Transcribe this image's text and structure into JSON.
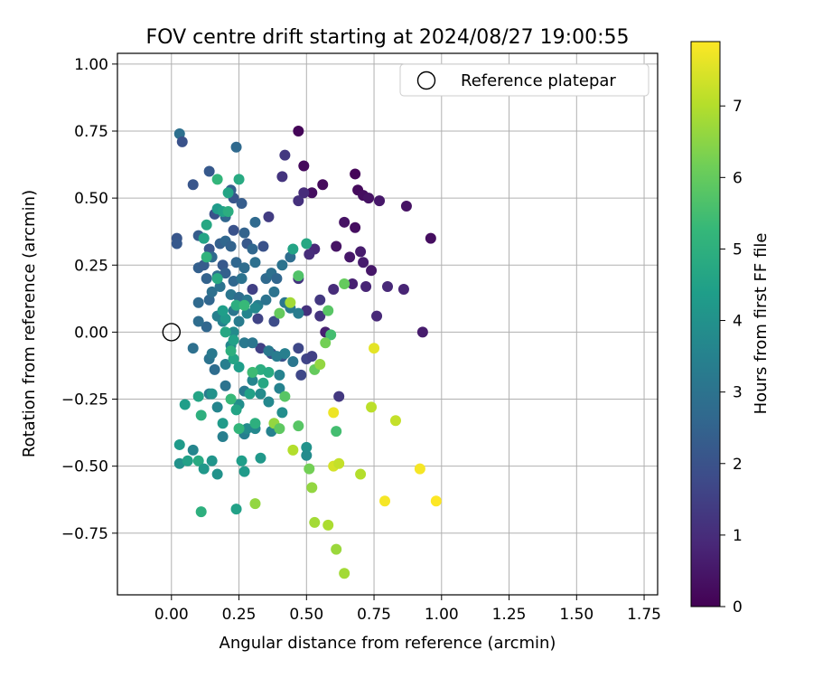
{
  "chart_data": {
    "type": "scatter",
    "title": "FOV centre drift starting at 2024/08/27 19:00:55",
    "xlabel": "Angular distance from reference (arcmin)",
    "ylabel": "Rotation from reference (arcmin)",
    "xlim": [
      -0.2,
      1.8
    ],
    "ylim": [
      -0.98,
      1.04
    ],
    "xticks": [
      "0.00",
      "0.25",
      "0.50",
      "0.75",
      "1.00",
      "1.25",
      "1.50",
      "1.75"
    ],
    "yticks": [
      "−0.75",
      "−0.50",
      "−0.25",
      "0.00",
      "0.25",
      "0.50",
      "0.75",
      "1.00"
    ],
    "xtick_values": [
      0,
      0.25,
      0.5,
      0.75,
      1.0,
      1.25,
      1.5,
      1.75
    ],
    "ytick_values": [
      -0.75,
      -0.5,
      -0.25,
      0,
      0.25,
      0.5,
      0.75,
      1.0
    ],
    "grid": true,
    "legend": {
      "placement": "top-right",
      "label": "Reference platepar"
    },
    "reference_point": {
      "x": 0.0,
      "y": 0.0
    },
    "colorbar": {
      "label": "Hours from first FF file",
      "min": 0,
      "max": 7.9,
      "ticks": [
        "0",
        "1",
        "2",
        "3",
        "4",
        "5",
        "6",
        "7"
      ],
      "tick_values": [
        0,
        1,
        2,
        3,
        4,
        5,
        6,
        7
      ],
      "colormap": "viridis",
      "colors": [
        "#440154",
        "#482878",
        "#3e4a89",
        "#31688e",
        "#26828e",
        "#1f9e89",
        "#35b779",
        "#6ece58",
        "#b5de2b",
        "#fde725"
      ]
    },
    "points": [
      {
        "x": 0.47,
        "y": 0.75,
        "c": 0.1
      },
      {
        "x": 0.49,
        "y": 0.62,
        "c": 0.2
      },
      {
        "x": 0.52,
        "y": 0.52,
        "c": 0.3
      },
      {
        "x": 0.56,
        "y": 0.55,
        "c": 0.2
      },
      {
        "x": 0.68,
        "y": 0.59,
        "c": 0.1
      },
      {
        "x": 0.69,
        "y": 0.53,
        "c": 0.2
      },
      {
        "x": 0.71,
        "y": 0.51,
        "c": 0.3
      },
      {
        "x": 0.73,
        "y": 0.5,
        "c": 0.4
      },
      {
        "x": 0.77,
        "y": 0.49,
        "c": 0.5
      },
      {
        "x": 0.87,
        "y": 0.47,
        "c": 0.4
      },
      {
        "x": 0.96,
        "y": 0.35,
        "c": 0.3
      },
      {
        "x": 0.64,
        "y": 0.41,
        "c": 0.4
      },
      {
        "x": 0.68,
        "y": 0.39,
        "c": 0.3
      },
      {
        "x": 0.61,
        "y": 0.32,
        "c": 0.4
      },
      {
        "x": 0.7,
        "y": 0.3,
        "c": 0.6
      },
      {
        "x": 0.66,
        "y": 0.28,
        "c": 0.5
      },
      {
        "x": 0.71,
        "y": 0.26,
        "c": 0.6
      },
      {
        "x": 0.74,
        "y": 0.23,
        "c": 0.5
      },
      {
        "x": 0.67,
        "y": 0.18,
        "c": 0.7
      },
      {
        "x": 0.72,
        "y": 0.17,
        "c": 0.8
      },
      {
        "x": 0.8,
        "y": 0.17,
        "c": 0.9
      },
      {
        "x": 0.86,
        "y": 0.16,
        "c": 0.8
      },
      {
        "x": 0.76,
        "y": 0.06,
        "c": 0.9
      },
      {
        "x": 0.93,
        "y": 0.0,
        "c": 0.6
      },
      {
        "x": 0.57,
        "y": 0.0,
        "c": 0.7
      },
      {
        "x": 0.53,
        "y": 0.31,
        "c": 0.9
      },
      {
        "x": 0.51,
        "y": 0.29,
        "c": 1.0
      },
      {
        "x": 0.6,
        "y": 0.16,
        "c": 1.0
      },
      {
        "x": 0.5,
        "y": 0.08,
        "c": 1.1
      },
      {
        "x": 0.55,
        "y": 0.06,
        "c": 1.2
      },
      {
        "x": 0.42,
        "y": 0.66,
        "c": 1.3
      },
      {
        "x": 0.41,
        "y": 0.58,
        "c": 1.2
      },
      {
        "x": 0.49,
        "y": 0.52,
        "c": 1.0
      },
      {
        "x": 0.47,
        "y": 0.49,
        "c": 1.1
      },
      {
        "x": 0.36,
        "y": 0.43,
        "c": 1.4
      },
      {
        "x": 0.3,
        "y": 0.16,
        "c": 1.5
      },
      {
        "x": 0.32,
        "y": 0.05,
        "c": 1.6
      },
      {
        "x": 0.38,
        "y": 0.04,
        "c": 1.8
      },
      {
        "x": 0.33,
        "y": -0.06,
        "c": 1.5
      },
      {
        "x": 0.37,
        "y": -0.08,
        "c": 1.9
      },
      {
        "x": 0.41,
        "y": -0.09,
        "c": 2.0
      },
      {
        "x": 0.47,
        "y": -0.06,
        "c": 1.7
      },
      {
        "x": 0.5,
        "y": -0.1,
        "c": 1.6
      },
      {
        "x": 0.52,
        "y": -0.09,
        "c": 1.5
      },
      {
        "x": 0.48,
        "y": -0.16,
        "c": 1.7
      },
      {
        "x": 0.62,
        "y": -0.24,
        "c": 1.3
      },
      {
        "x": 0.47,
        "y": 0.2,
        "c": 1.2
      },
      {
        "x": 0.55,
        "y": 0.12,
        "c": 1.3
      },
      {
        "x": 0.02,
        "y": 0.35,
        "c": 2.1
      },
      {
        "x": 0.02,
        "y": 0.33,
        "c": 2.2
      },
      {
        "x": 0.03,
        "y": 0.74,
        "c": 2.9
      },
      {
        "x": 0.04,
        "y": 0.71,
        "c": 2.0
      },
      {
        "x": 0.08,
        "y": 0.55,
        "c": 2.1
      },
      {
        "x": 0.14,
        "y": 0.6,
        "c": 2.2
      },
      {
        "x": 0.24,
        "y": 0.69,
        "c": 2.7
      },
      {
        "x": 0.22,
        "y": 0.53,
        "c": 2.4
      },
      {
        "x": 0.23,
        "y": 0.5,
        "c": 2.1
      },
      {
        "x": 0.26,
        "y": 0.48,
        "c": 2.3
      },
      {
        "x": 0.2,
        "y": 0.43,
        "c": 2.6
      },
      {
        "x": 0.16,
        "y": 0.44,
        "c": 2.0
      },
      {
        "x": 0.23,
        "y": 0.38,
        "c": 2.0
      },
      {
        "x": 0.31,
        "y": 0.41,
        "c": 2.7
      },
      {
        "x": 0.27,
        "y": 0.37,
        "c": 2.5
      },
      {
        "x": 0.1,
        "y": 0.36,
        "c": 2.3
      },
      {
        "x": 0.12,
        "y": 0.35,
        "c": 2.5
      },
      {
        "x": 0.14,
        "y": 0.31,
        "c": 2.1
      },
      {
        "x": 0.18,
        "y": 0.33,
        "c": 2.4
      },
      {
        "x": 0.2,
        "y": 0.34,
        "c": 2.6
      },
      {
        "x": 0.22,
        "y": 0.32,
        "c": 2.5
      },
      {
        "x": 0.28,
        "y": 0.33,
        "c": 2.2
      },
      {
        "x": 0.3,
        "y": 0.31,
        "c": 2.6
      },
      {
        "x": 0.34,
        "y": 0.32,
        "c": 2.0
      },
      {
        "x": 0.15,
        "y": 0.28,
        "c": 2.7
      },
      {
        "x": 0.19,
        "y": 0.25,
        "c": 2.2
      },
      {
        "x": 0.24,
        "y": 0.26,
        "c": 2.6
      },
      {
        "x": 0.1,
        "y": 0.24,
        "c": 2.4
      },
      {
        "x": 0.12,
        "y": 0.25,
        "c": 2.3
      },
      {
        "x": 0.27,
        "y": 0.24,
        "c": 2.8
      },
      {
        "x": 0.31,
        "y": 0.26,
        "c": 2.9
      },
      {
        "x": 0.13,
        "y": 0.2,
        "c": 2.5
      },
      {
        "x": 0.17,
        "y": 0.21,
        "c": 2.9
      },
      {
        "x": 0.2,
        "y": 0.22,
        "c": 2.4
      },
      {
        "x": 0.23,
        "y": 0.19,
        "c": 2.6
      },
      {
        "x": 0.26,
        "y": 0.2,
        "c": 3.0
      },
      {
        "x": 0.35,
        "y": 0.2,
        "c": 2.7
      },
      {
        "x": 0.37,
        "y": 0.22,
        "c": 2.9
      },
      {
        "x": 0.39,
        "y": 0.2,
        "c": 2.6
      },
      {
        "x": 0.41,
        "y": 0.25,
        "c": 3.0
      },
      {
        "x": 0.44,
        "y": 0.28,
        "c": 2.8
      },
      {
        "x": 0.38,
        "y": 0.15,
        "c": 3.0
      },
      {
        "x": 0.42,
        "y": 0.11,
        "c": 3.1
      },
      {
        "x": 0.44,
        "y": 0.09,
        "c": 3.2
      },
      {
        "x": 0.47,
        "y": 0.07,
        "c": 3.3
      },
      {
        "x": 0.1,
        "y": 0.11,
        "c": 2.7
      },
      {
        "x": 0.14,
        "y": 0.12,
        "c": 2.6
      },
      {
        "x": 0.15,
        "y": 0.15,
        "c": 2.9
      },
      {
        "x": 0.18,
        "y": 0.17,
        "c": 3.0
      },
      {
        "x": 0.22,
        "y": 0.14,
        "c": 3.1
      },
      {
        "x": 0.25,
        "y": 0.13,
        "c": 2.8
      },
      {
        "x": 0.28,
        "y": 0.12,
        "c": 3.2
      },
      {
        "x": 0.32,
        "y": 0.1,
        "c": 3.3
      },
      {
        "x": 0.35,
        "y": 0.12,
        "c": 3.0
      },
      {
        "x": 0.13,
        "y": 0.02,
        "c": 2.6
      },
      {
        "x": 0.1,
        "y": 0.04,
        "c": 2.8
      },
      {
        "x": 0.17,
        "y": 0.06,
        "c": 3.4
      },
      {
        "x": 0.19,
        "y": 0.04,
        "c": 3.5
      },
      {
        "x": 0.23,
        "y": 0.08,
        "c": 3.1
      },
      {
        "x": 0.25,
        "y": 0.04,
        "c": 3.3
      },
      {
        "x": 0.28,
        "y": 0.07,
        "c": 3.6
      },
      {
        "x": 0.31,
        "y": 0.09,
        "c": 3.7
      },
      {
        "x": 0.08,
        "y": -0.06,
        "c": 2.9
      },
      {
        "x": 0.14,
        "y": -0.1,
        "c": 3.0
      },
      {
        "x": 0.15,
        "y": -0.08,
        "c": 3.2
      },
      {
        "x": 0.16,
        "y": -0.14,
        "c": 2.8
      },
      {
        "x": 0.2,
        "y": -0.12,
        "c": 3.4
      },
      {
        "x": 0.22,
        "y": -0.05,
        "c": 3.7
      },
      {
        "x": 0.23,
        "y": 0.0,
        "c": 3.8
      },
      {
        "x": 0.27,
        "y": -0.04,
        "c": 3.2
      },
      {
        "x": 0.3,
        "y": -0.04,
        "c": 3.1
      },
      {
        "x": 0.36,
        "y": -0.07,
        "c": 3.2
      },
      {
        "x": 0.39,
        "y": -0.09,
        "c": 3.3
      },
      {
        "x": 0.42,
        "y": -0.08,
        "c": 3.4
      },
      {
        "x": 0.45,
        "y": -0.11,
        "c": 3.1
      },
      {
        "x": 0.4,
        "y": -0.16,
        "c": 3.5
      },
      {
        "x": 0.3,
        "y": -0.18,
        "c": 3.6
      },
      {
        "x": 0.27,
        "y": -0.22,
        "c": 3.2
      },
      {
        "x": 0.33,
        "y": -0.23,
        "c": 3.8
      },
      {
        "x": 0.36,
        "y": -0.26,
        "c": 3.7
      },
      {
        "x": 0.4,
        "y": -0.21,
        "c": 3.5
      },
      {
        "x": 0.14,
        "y": -0.23,
        "c": 3.3
      },
      {
        "x": 0.17,
        "y": -0.28,
        "c": 3.6
      },
      {
        "x": 0.2,
        "y": -0.2,
        "c": 3.0
      },
      {
        "x": 0.25,
        "y": -0.27,
        "c": 3.9
      },
      {
        "x": 0.41,
        "y": -0.3,
        "c": 3.9
      },
      {
        "x": 0.37,
        "y": -0.37,
        "c": 3.5
      },
      {
        "x": 0.27,
        "y": -0.38,
        "c": 3.4
      },
      {
        "x": 0.28,
        "y": -0.36,
        "c": 3.8
      },
      {
        "x": 0.31,
        "y": -0.36,
        "c": 3.7
      },
      {
        "x": 0.19,
        "y": -0.39,
        "c": 3.4
      },
      {
        "x": 0.08,
        "y": -0.44,
        "c": 3.6
      },
      {
        "x": 0.03,
        "y": -0.42,
        "c": 4.3
      },
      {
        "x": 0.03,
        "y": -0.49,
        "c": 4.0
      },
      {
        "x": 0.06,
        "y": -0.48,
        "c": 4.5
      },
      {
        "x": 0.1,
        "y": -0.48,
        "c": 4.8
      },
      {
        "x": 0.12,
        "y": -0.51,
        "c": 4.2
      },
      {
        "x": 0.15,
        "y": -0.48,
        "c": 4.1
      },
      {
        "x": 0.17,
        "y": -0.53,
        "c": 4.0
      },
      {
        "x": 0.26,
        "y": -0.48,
        "c": 4.4
      },
      {
        "x": 0.27,
        "y": -0.52,
        "c": 4.3
      },
      {
        "x": 0.33,
        "y": -0.47,
        "c": 4.2
      },
      {
        "x": 0.5,
        "y": -0.43,
        "c": 4.0
      },
      {
        "x": 0.5,
        "y": -0.46,
        "c": 3.8
      },
      {
        "x": 0.11,
        "y": -0.67,
        "c": 5.0
      },
      {
        "x": 0.24,
        "y": -0.66,
        "c": 4.5
      },
      {
        "x": 0.05,
        "y": -0.27,
        "c": 4.4
      },
      {
        "x": 0.1,
        "y": -0.24,
        "c": 4.6
      },
      {
        "x": 0.15,
        "y": -0.23,
        "c": 4.0
      },
      {
        "x": 0.11,
        "y": -0.31,
        "c": 5.0
      },
      {
        "x": 0.19,
        "y": -0.34,
        "c": 4.3
      },
      {
        "x": 0.22,
        "y": -0.25,
        "c": 5.3
      },
      {
        "x": 0.24,
        "y": -0.29,
        "c": 4.6
      },
      {
        "x": 0.25,
        "y": -0.36,
        "c": 5.2
      },
      {
        "x": 0.31,
        "y": -0.34,
        "c": 5.0
      },
      {
        "x": 0.29,
        "y": -0.23,
        "c": 4.5
      },
      {
        "x": 0.34,
        "y": -0.19,
        "c": 4.7
      },
      {
        "x": 0.33,
        "y": -0.14,
        "c": 4.9
      },
      {
        "x": 0.36,
        "y": -0.15,
        "c": 4.8
      },
      {
        "x": 0.3,
        "y": -0.15,
        "c": 5.4
      },
      {
        "x": 0.25,
        "y": -0.13,
        "c": 4.4
      },
      {
        "x": 0.23,
        "y": -0.1,
        "c": 4.6
      },
      {
        "x": 0.22,
        "y": -0.07,
        "c": 5.0
      },
      {
        "x": 0.23,
        "y": -0.03,
        "c": 4.5
      },
      {
        "x": 0.2,
        "y": 0.0,
        "c": 4.7
      },
      {
        "x": 0.2,
        "y": 0.05,
        "c": 4.2
      },
      {
        "x": 0.24,
        "y": 0.1,
        "c": 4.9
      },
      {
        "x": 0.27,
        "y": 0.1,
        "c": 5.3
      },
      {
        "x": 0.19,
        "y": 0.08,
        "c": 4.4
      },
      {
        "x": 0.17,
        "y": 0.2,
        "c": 4.8
      },
      {
        "x": 0.13,
        "y": 0.28,
        "c": 5.1
      },
      {
        "x": 0.12,
        "y": 0.35,
        "c": 4.6
      },
      {
        "x": 0.13,
        "y": 0.4,
        "c": 4.7
      },
      {
        "x": 0.17,
        "y": 0.46,
        "c": 4.3
      },
      {
        "x": 0.19,
        "y": 0.45,
        "c": 4.5
      },
      {
        "x": 0.21,
        "y": 0.45,
        "c": 4.9
      },
      {
        "x": 0.17,
        "y": 0.57,
        "c": 5.2
      },
      {
        "x": 0.21,
        "y": 0.52,
        "c": 4.6
      },
      {
        "x": 0.25,
        "y": 0.57,
        "c": 4.8
      },
      {
        "x": 0.45,
        "y": 0.31,
        "c": 4.6
      },
      {
        "x": 0.5,
        "y": 0.33,
        "c": 4.7
      },
      {
        "x": 0.47,
        "y": 0.21,
        "c": 5.7
      },
      {
        "x": 0.4,
        "y": 0.07,
        "c": 6.0
      },
      {
        "x": 0.58,
        "y": 0.08,
        "c": 5.8
      },
      {
        "x": 0.59,
        "y": -0.01,
        "c": 5.5
      },
      {
        "x": 0.57,
        "y": -0.04,
        "c": 6.2
      },
      {
        "x": 0.42,
        "y": -0.24,
        "c": 5.8
      },
      {
        "x": 0.38,
        "y": -0.34,
        "c": 6.6
      },
      {
        "x": 0.4,
        "y": -0.36,
        "c": 5.9
      },
      {
        "x": 0.47,
        "y": -0.35,
        "c": 5.8
      },
      {
        "x": 0.53,
        "y": -0.14,
        "c": 6.0
      },
      {
        "x": 0.55,
        "y": -0.12,
        "c": 6.6
      },
      {
        "x": 0.44,
        "y": 0.11,
        "c": 6.8
      },
      {
        "x": 0.64,
        "y": 0.18,
        "c": 6.0
      },
      {
        "x": 0.61,
        "y": -0.37,
        "c": 5.5
      },
      {
        "x": 0.51,
        "y": -0.51,
        "c": 6.2
      },
      {
        "x": 0.52,
        "y": -0.58,
        "c": 6.6
      },
      {
        "x": 0.45,
        "y": -0.44,
        "c": 7.0
      },
      {
        "x": 0.31,
        "y": -0.64,
        "c": 6.6
      },
      {
        "x": 0.53,
        "y": -0.71,
        "c": 6.8
      },
      {
        "x": 0.58,
        "y": -0.72,
        "c": 6.9
      },
      {
        "x": 0.61,
        "y": -0.81,
        "c": 6.7
      },
      {
        "x": 0.64,
        "y": -0.9,
        "c": 6.8
      },
      {
        "x": 0.6,
        "y": -0.5,
        "c": 7.4
      },
      {
        "x": 0.62,
        "y": -0.49,
        "c": 7.2
      },
      {
        "x": 0.7,
        "y": -0.53,
        "c": 7.0
      },
      {
        "x": 0.6,
        "y": -0.3,
        "c": 7.7
      },
      {
        "x": 0.74,
        "y": -0.28,
        "c": 7.1
      },
      {
        "x": 0.83,
        "y": -0.33,
        "c": 7.2
      },
      {
        "x": 0.75,
        "y": -0.06,
        "c": 7.6
      },
      {
        "x": 0.79,
        "y": -0.63,
        "c": 7.8
      },
      {
        "x": 0.92,
        "y": -0.51,
        "c": 7.8
      },
      {
        "x": 0.98,
        "y": -0.63,
        "c": 7.9
      }
    ]
  }
}
